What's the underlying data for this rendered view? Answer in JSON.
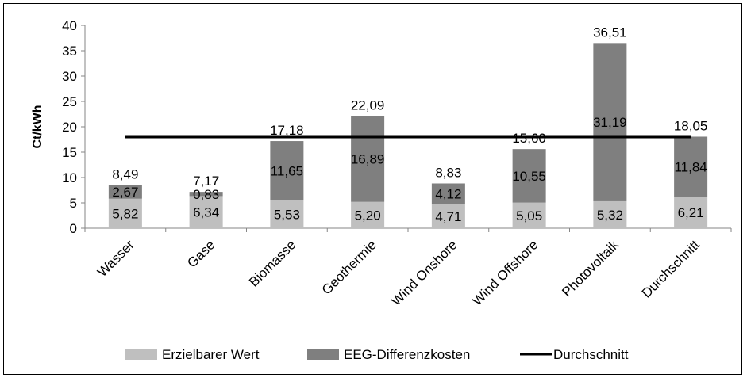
{
  "chart_data": {
    "type": "bar",
    "stacked": true,
    "title": "",
    "xlabel": "",
    "ylabel": "Ct/kWh",
    "ylim": [
      0,
      40
    ],
    "yticks": [
      0,
      5,
      10,
      15,
      20,
      25,
      30,
      35,
      40
    ],
    "grid": false,
    "legend_position": "bottom",
    "categories": [
      "Wasser",
      "Gase",
      "Biomasse",
      "Geothermie",
      "Wind Onshore",
      "Wind Offshore",
      "Photovoltaik",
      "Durchschnitt"
    ],
    "series": [
      {
        "name": "Erzielbarer Wert",
        "color": "#bfbfbf",
        "values": [
          5.82,
          6.34,
          5.53,
          5.2,
          4.71,
          5.05,
          5.32,
          6.21
        ],
        "labels": [
          "5,82",
          "6,34",
          "5,53",
          "5,20",
          "4,71",
          "5,05",
          "5,32",
          "6,21"
        ]
      },
      {
        "name": "EEG-Differenzkosten",
        "color": "#7f7f7f",
        "values": [
          2.67,
          0.83,
          11.65,
          16.89,
          4.12,
          10.55,
          31.19,
          11.84
        ],
        "labels": [
          "2,67",
          "0,83",
          "11,65",
          "16,89",
          "4,12",
          "10,55",
          "31,19",
          "11,84"
        ]
      }
    ],
    "totals": [
      8.49,
      7.17,
      17.18,
      22.09,
      8.83,
      15.6,
      36.51,
      18.05
    ],
    "total_labels": [
      "8,49",
      "7,17",
      "17,18",
      "22,09",
      "8,83",
      "15,60",
      "36,51",
      "18,05"
    ],
    "average_line": {
      "name": "Durchschnitt",
      "value": 18.05,
      "color": "#000000"
    }
  }
}
